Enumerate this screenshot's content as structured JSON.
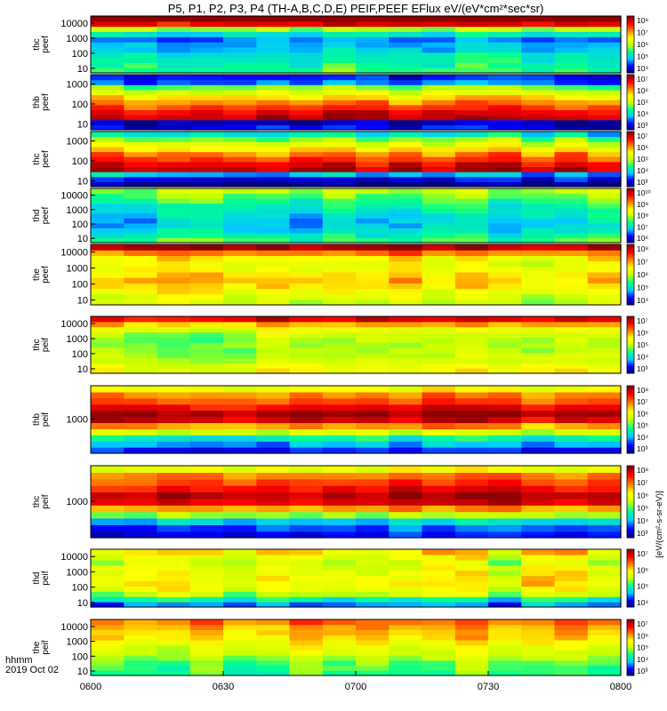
{
  "chart_data": {
    "type": "heatmap",
    "title": "P5, P1, P2, P3, P4 (TH-A,B,C,D,E) PEIF,PEEF EFlux eV/(eV*cm²*sec*sr)",
    "time_axis": {
      "date_label": "2019 Oct 02",
      "format_label": "hhmm",
      "ticks": [
        "0600",
        "0630",
        "0700",
        "0730",
        "0800"
      ],
      "range": [
        "06:00",
        "08:00"
      ]
    },
    "colorbar_units": "[eV/(cm²-s-sr-eV)]",
    "colormap": [
      "#000080",
      "#0000ff",
      "#00c8ff",
      "#00ff90",
      "#c8ff00",
      "#ffff00",
      "#ff8000",
      "#ff0000",
      "#8b0000"
    ],
    "panels": [
      {
        "label": [
          "thc",
          "peef"
        ],
        "yticks": [
          "10000",
          "1000",
          "100",
          "10"
        ],
        "ylim": [
          5,
          30000
        ],
        "colorbar_range": [
          10000,
          100000000
        ],
        "cticks": [
          "10⁸",
          "10⁷",
          "10⁶",
          "10⁵",
          "10⁴"
        ],
        "mean_log_flux_by_energy": [
          5.6,
          5.5,
          5.4,
          5.3,
          5.1,
          5.0,
          4.9,
          5.3,
          6.0,
          7.6,
          8.2
        ]
      },
      {
        "label": [
          "thb",
          "peef"
        ],
        "yticks": [
          "1000",
          "100",
          "10"
        ],
        "ylim": [
          5,
          3000
        ],
        "colorbar_range": [
          1000,
          10000000
        ],
        "cticks": [
          "10⁷",
          "10⁶",
          "10⁵",
          "10⁴",
          "10³"
        ],
        "mean_log_flux_by_energy": [
          3.4,
          3.2,
          6.8,
          6.6,
          6.3,
          6.0,
          5.6,
          5.2,
          4.8,
          3.8,
          3.5
        ]
      },
      {
        "label": [
          "thc",
          "peef"
        ],
        "yticks": [
          "1000",
          "100",
          "10"
        ],
        "ylim": [
          5,
          3000
        ],
        "colorbar_range": [
          1000,
          10000000
        ],
        "cticks": [
          "10⁷",
          "10⁶",
          "10⁵",
          "10⁴",
          "10³"
        ],
        "mean_log_flux_by_energy": [
          3.0,
          3.4,
          4.0,
          6.8,
          6.6,
          6.3,
          6.0,
          5.6,
          5.2,
          4.8,
          4.2
        ]
      },
      {
        "label": [
          "thd",
          "peef"
        ],
        "yticks": [
          "10000",
          "1000",
          "100",
          "10"
        ],
        "ylim": [
          5,
          30000
        ],
        "colorbar_range": [
          1000000,
          10000000000
        ],
        "cticks": [
          "10¹⁰",
          "10⁹",
          "10⁸",
          "10⁷",
          "10⁶"
        ],
        "mean_log_flux_by_energy": [
          7.6,
          7.4,
          7.2,
          7.1,
          7.1,
          7.2,
          7.3,
          7.4,
          7.6,
          7.8,
          8.0
        ]
      },
      {
        "label": [
          "the",
          "peef"
        ],
        "yticks": [
          "10000",
          "1000",
          "100",
          "10"
        ],
        "ylim": [
          5,
          30000
        ],
        "colorbar_range": [
          10000,
          100000000
        ],
        "cticks": [
          "10⁸",
          "10⁷",
          "10⁶",
          "10⁵",
          "10⁴"
        ],
        "mean_log_flux_by_energy": [
          6.1,
          6.2,
          6.4,
          6.6,
          6.7,
          6.6,
          6.4,
          6.3,
          6.5,
          7.0,
          7.8
        ]
      },
      {
        "label": [
          "thc",
          "peif"
        ],
        "yticks": [
          "10000",
          "1000",
          "100",
          "10"
        ],
        "ylim": [
          5,
          30000
        ],
        "colorbar_range": [
          1000,
          10000000
        ],
        "cticks": [
          "10⁷",
          "10⁶",
          "10⁵",
          "10⁴",
          "10³"
        ],
        "mean_log_flux_by_energy": [
          5.4,
          5.3,
          5.1,
          5.0,
          4.9,
          4.9,
          4.9,
          5.0,
          5.3,
          5.8,
          6.6
        ]
      },
      {
        "label": [
          "thb",
          "peif"
        ],
        "yticks": [
          "1000"
        ],
        "ylim": [
          30,
          30000
        ],
        "colorbar_range": [
          1000,
          100000000
        ],
        "cticks": [
          "10⁸",
          "10⁷",
          "10⁶",
          "10⁵",
          "10⁴",
          "10³"
        ],
        "mean_log_flux_by_energy": [
          3.6,
          4.1,
          4.7,
          5.6,
          6.6,
          7.6,
          7.9,
          7.4,
          7.0,
          6.7,
          6.0
        ]
      },
      {
        "label": [
          "thc",
          "peif"
        ],
        "yticks": [
          "1000"
        ],
        "ylim": [
          30,
          30000
        ],
        "colorbar_range": [
          1000,
          100000000
        ],
        "cticks": [
          "10⁸",
          "10⁷",
          "10⁶",
          "10⁵",
          "10⁴",
          "10³"
        ],
        "mean_log_flux_by_energy": [
          3.6,
          3.9,
          4.4,
          5.4,
          6.6,
          7.6,
          7.8,
          7.4,
          7.1,
          6.8,
          6.0
        ]
      },
      {
        "label": [
          "thd",
          "peif"
        ],
        "yticks": [
          "10000",
          "1000",
          "100",
          "10"
        ],
        "ylim": [
          5,
          30000
        ],
        "colorbar_range": [
          10000,
          10000000
        ],
        "cticks": [
          "10⁷",
          "10⁶",
          "10⁵",
          "10⁴"
        ],
        "mean_log_flux_by_energy": [
          4.6,
          5.0,
          5.5,
          5.7,
          5.8,
          5.8,
          5.7,
          5.7,
          5.6,
          5.7,
          5.9
        ]
      },
      {
        "label": [
          "the",
          "peif"
        ],
        "yticks": [
          "10000",
          "1000",
          "100",
          "10"
        ],
        "ylim": [
          5,
          30000
        ],
        "colorbar_range": [
          1000,
          10000000
        ],
        "cticks": [
          "10⁷",
          "10⁶",
          "10⁵",
          "10⁴",
          "10³"
        ],
        "mean_log_flux_by_energy": [
          4.6,
          4.7,
          4.8,
          5.0,
          5.1,
          5.3,
          5.5,
          5.7,
          5.8,
          5.9,
          6.1
        ]
      }
    ]
  }
}
